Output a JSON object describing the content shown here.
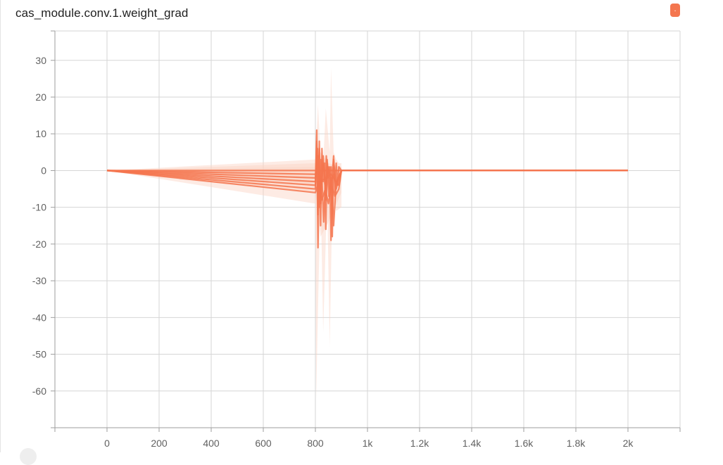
{
  "card": {
    "title": "cas_module.conv.1.weight_grad",
    "badge_label": "."
  },
  "colors": {
    "series": "#f4764f",
    "band": "#fbd3c4",
    "grid": "#d6d6d6",
    "tick_text": "#616161",
    "badge": "#f4764f"
  },
  "chart_data": {
    "type": "line",
    "title": "cas_module.conv.1.weight_grad",
    "xlabel": "",
    "ylabel": "",
    "xlim": [
      -200,
      2200
    ],
    "ylim": [
      -70,
      38
    ],
    "grid": true,
    "legend": "none",
    "x_ticks": [
      0,
      200,
      400,
      600,
      800,
      1000,
      1200,
      1400,
      1600,
      1800,
      2000
    ],
    "x_tick_labels": [
      "0",
      "200",
      "400",
      "600",
      "800",
      "1k",
      "1.2k",
      "1.4k",
      "1.6k",
      "1.8k",
      "2k"
    ],
    "y_ticks": [
      30,
      20,
      10,
      0,
      -10,
      -20,
      -30,
      -40,
      -50,
      -60
    ],
    "y_tick_labels": [
      "30",
      "20",
      "10",
      "0",
      "-10",
      "-20",
      "-30",
      "-40",
      "-50",
      "-60"
    ],
    "x_grid_extra": [
      -200,
      2200
    ],
    "y_grid_extra": [
      38,
      -70
    ],
    "bands": [
      {
        "upper": [
          [
            0,
            0
          ],
          [
            800,
            3
          ],
          [
            810,
            18
          ],
          [
            820,
            4
          ],
          [
            830,
            2
          ],
          [
            840,
            17
          ],
          [
            855,
            5
          ],
          [
            860,
            28
          ],
          [
            870,
            5
          ],
          [
            880,
            3
          ],
          [
            890,
            2
          ],
          [
            900,
            2
          ]
        ],
        "lower": [
          [
            0,
            0
          ],
          [
            800,
            -9
          ],
          [
            803,
            -62
          ],
          [
            810,
            -38
          ],
          [
            820,
            -5
          ],
          [
            830,
            -44
          ],
          [
            845,
            -6
          ],
          [
            855,
            -48
          ],
          [
            865,
            -8
          ],
          [
            880,
            -11
          ],
          [
            900,
            -10
          ]
        ]
      },
      {
        "upper": [
          [
            0,
            0
          ],
          [
            800,
            2
          ],
          [
            820,
            5
          ],
          [
            850,
            2
          ],
          [
            900,
            1
          ]
        ],
        "lower": [
          [
            0,
            0
          ],
          [
            800,
            -6
          ],
          [
            820,
            -18
          ],
          [
            850,
            -14
          ],
          [
            900,
            -6
          ]
        ]
      },
      {
        "upper": [
          [
            0,
            0
          ],
          [
            800,
            1
          ],
          [
            900,
            1
          ]
        ],
        "lower": [
          [
            0,
            0
          ],
          [
            800,
            -4
          ],
          [
            900,
            -3
          ]
        ]
      }
    ],
    "series": [
      {
        "values": [
          [
            0,
            0
          ],
          [
            800,
            -5
          ],
          [
            805,
            11
          ],
          [
            810,
            -21
          ],
          [
            815,
            8
          ],
          [
            820,
            -15
          ],
          [
            825,
            6
          ],
          [
            830,
            -3
          ],
          [
            835,
            2
          ],
          [
            840,
            -16
          ],
          [
            845,
            3
          ],
          [
            850,
            -2
          ],
          [
            855,
            1
          ],
          [
            860,
            -19
          ],
          [
            865,
            -1
          ],
          [
            870,
            4
          ],
          [
            875,
            -6
          ],
          [
            880,
            2
          ],
          [
            885,
            -4
          ],
          [
            890,
            1
          ],
          [
            900,
            0
          ],
          [
            2000,
            0
          ]
        ]
      },
      {
        "values": [
          [
            0,
            0
          ],
          [
            800,
            -3
          ],
          [
            805,
            8
          ],
          [
            810,
            -12
          ],
          [
            815,
            6
          ],
          [
            820,
            -9
          ],
          [
            830,
            4
          ],
          [
            840,
            -8
          ],
          [
            845,
            2
          ],
          [
            855,
            -5
          ],
          [
            860,
            1
          ],
          [
            865,
            -18
          ],
          [
            870,
            3
          ],
          [
            880,
            -5
          ],
          [
            890,
            -2
          ],
          [
            900,
            0
          ],
          [
            2000,
            0
          ]
        ]
      },
      {
        "values": [
          [
            0,
            0
          ],
          [
            800,
            -4
          ],
          [
            808,
            6
          ],
          [
            815,
            -10
          ],
          [
            822,
            3
          ],
          [
            832,
            -14
          ],
          [
            842,
            4
          ],
          [
            852,
            -7
          ],
          [
            862,
            -2
          ],
          [
            870,
            -15
          ],
          [
            880,
            -3
          ],
          [
            890,
            -4
          ],
          [
            900,
            0
          ],
          [
            2000,
            0
          ]
        ]
      },
      {
        "values": [
          [
            0,
            0
          ],
          [
            800,
            -2
          ],
          [
            810,
            4
          ],
          [
            820,
            -6
          ],
          [
            830,
            2
          ],
          [
            840,
            -4
          ],
          [
            850,
            1
          ],
          [
            860,
            -3
          ],
          [
            870,
            -1
          ],
          [
            880,
            -4
          ],
          [
            890,
            -2
          ],
          [
            900,
            0
          ],
          [
            2000,
            0
          ]
        ]
      },
      {
        "values": [
          [
            0,
            0
          ],
          [
            800,
            -1
          ],
          [
            810,
            2
          ],
          [
            820,
            -3
          ],
          [
            840,
            -2
          ],
          [
            860,
            -1
          ],
          [
            880,
            -3
          ],
          [
            900,
            0
          ],
          [
            2000,
            0
          ]
        ]
      },
      {
        "values": [
          [
            0,
            0
          ],
          [
            800,
            -6
          ],
          [
            812,
            -3
          ],
          [
            825,
            -8
          ],
          [
            838,
            -5
          ],
          [
            850,
            -9
          ],
          [
            862,
            -4
          ],
          [
            875,
            -7
          ],
          [
            890,
            -5
          ],
          [
            900,
            0
          ],
          [
            2000,
            0
          ]
        ]
      },
      {
        "values": [
          [
            0,
            0
          ],
          [
            800,
            0
          ],
          [
            900,
            0
          ],
          [
            2000,
            0
          ]
        ]
      }
    ]
  }
}
